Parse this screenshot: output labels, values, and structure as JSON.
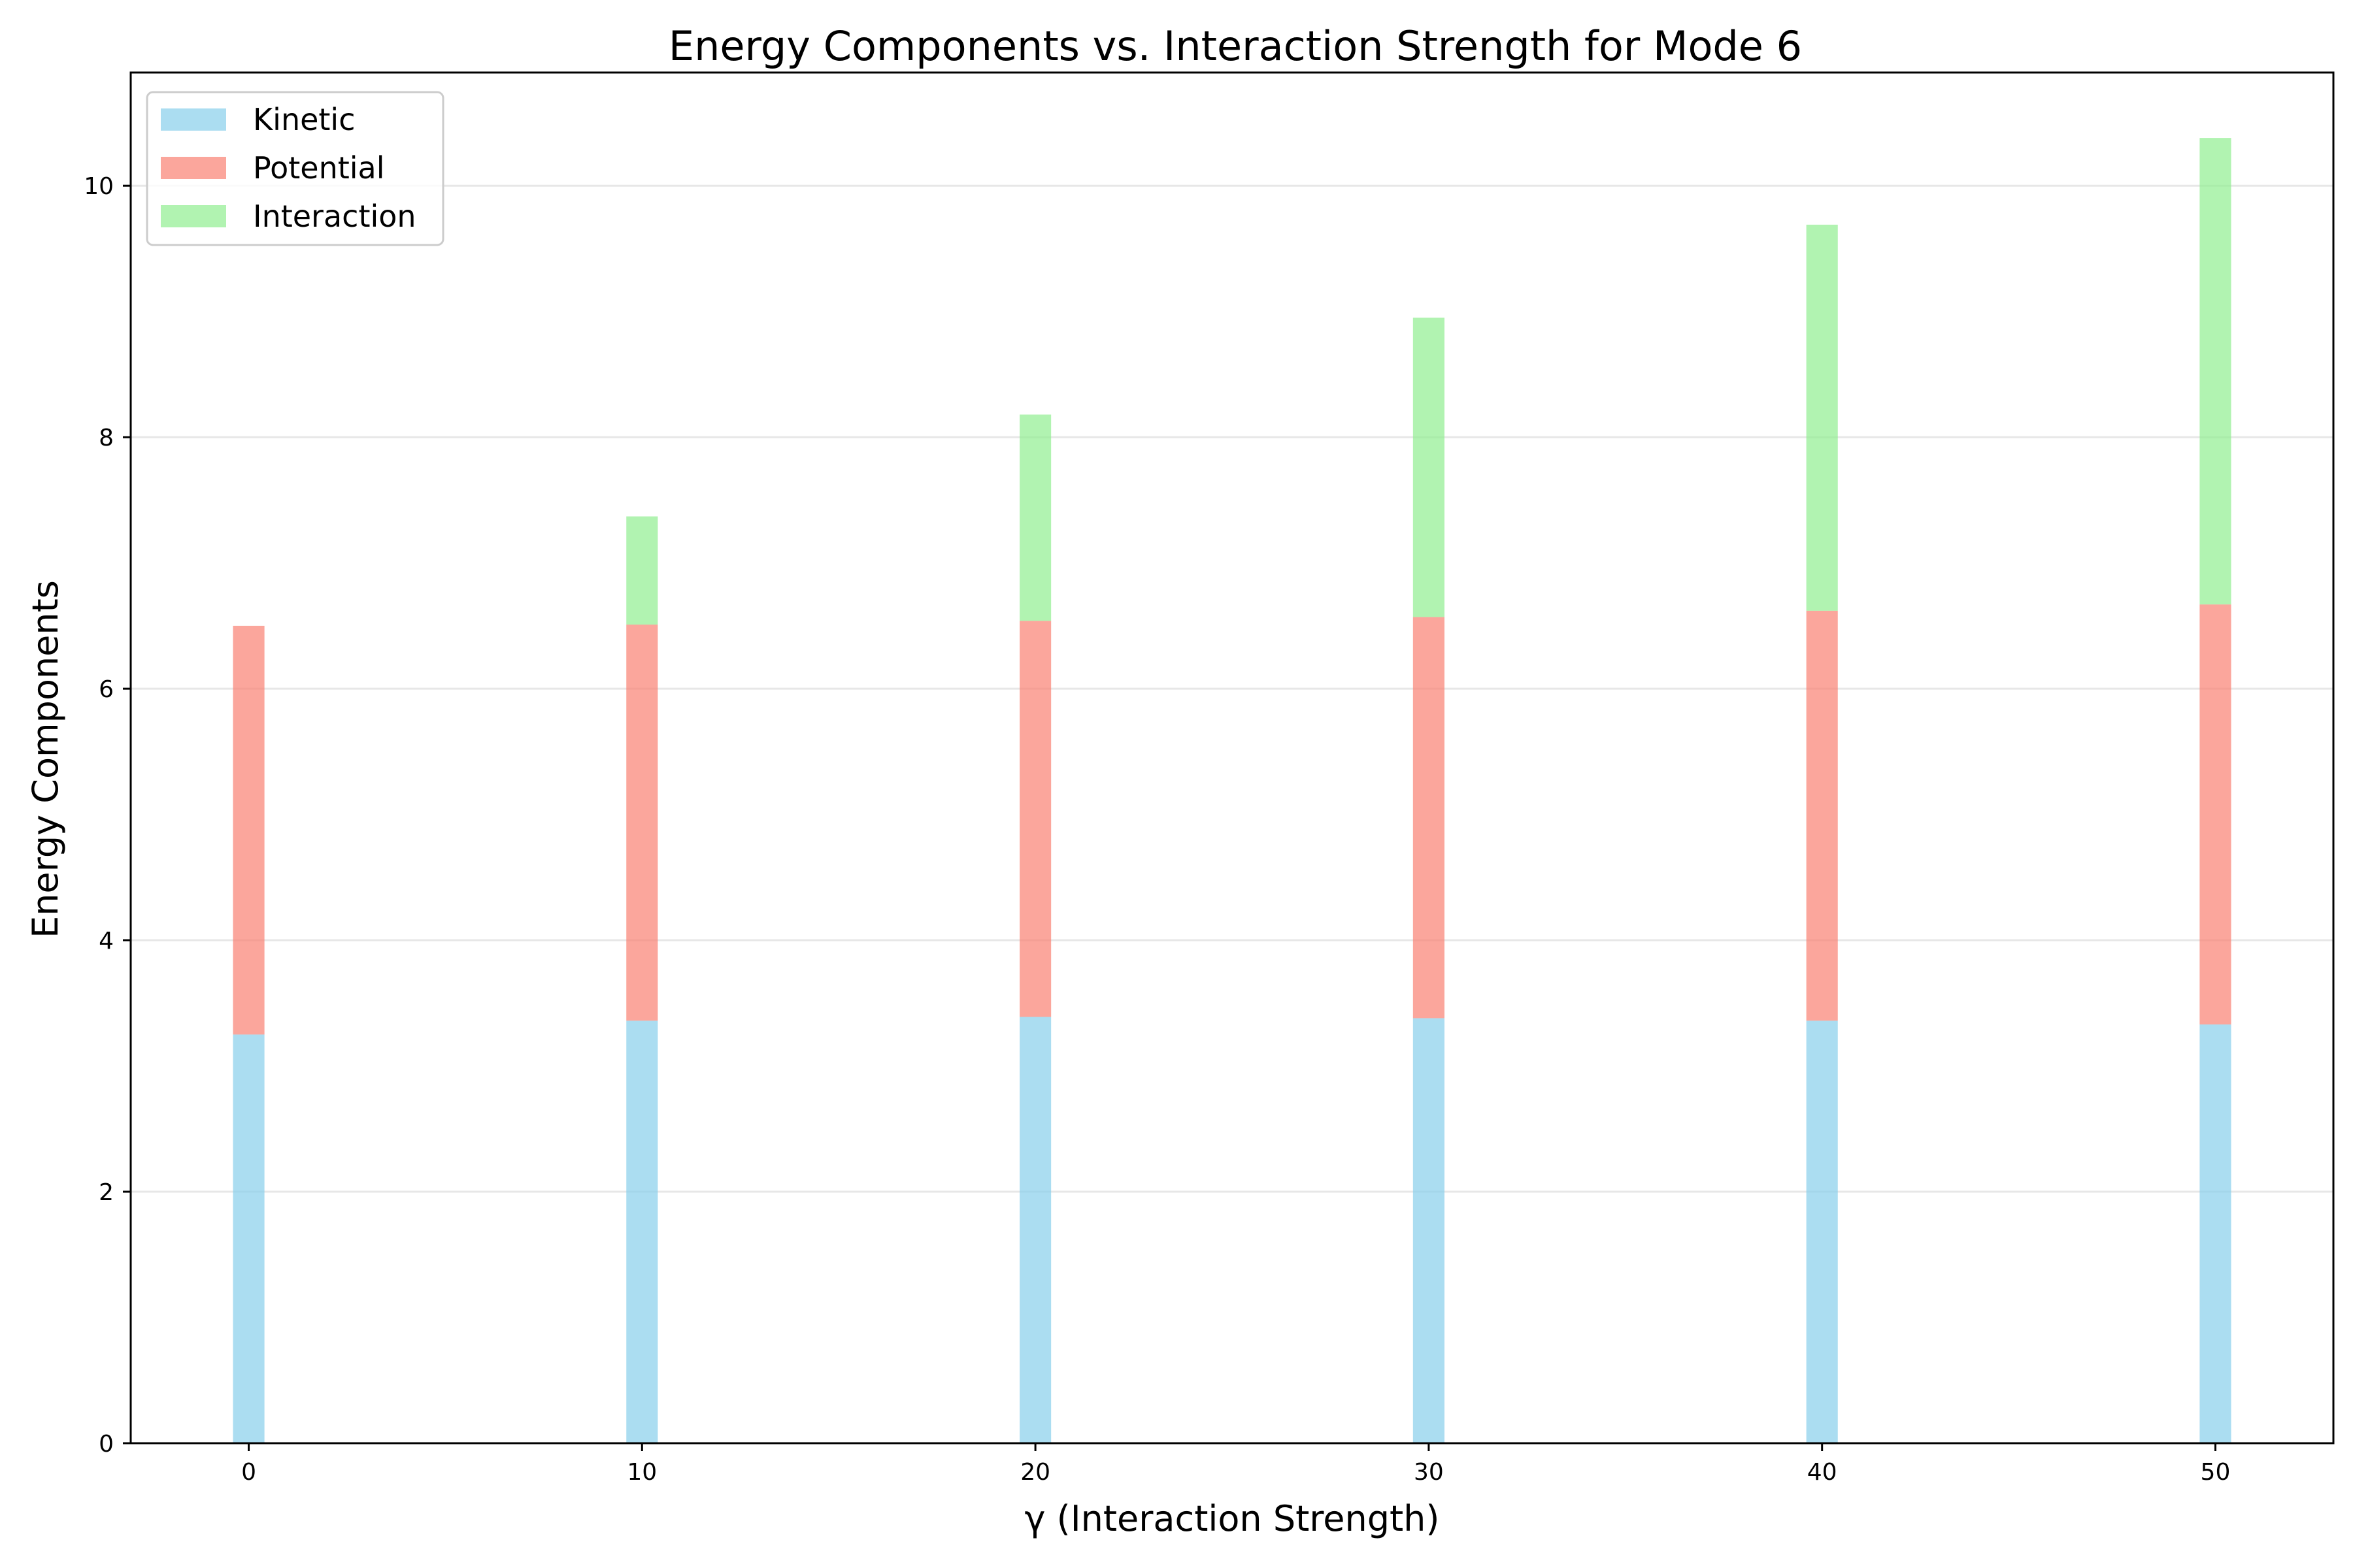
{
  "chart_data": {
    "type": "bar",
    "stacked": true,
    "title": "Energy Components vs. Interaction Strength for Mode 6",
    "xlabel": "γ (Interaction Strength)",
    "ylabel": "Energy Components",
    "x": [
      0,
      10,
      20,
      30,
      40,
      50
    ],
    "xticks": [
      0,
      10,
      20,
      30,
      40,
      50
    ],
    "yticks": [
      0,
      2,
      4,
      6,
      8,
      10
    ],
    "xlim": [
      -3,
      53
    ],
    "ylim": [
      0,
      10.9
    ],
    "grid": "y-axis only",
    "legend_position": "upper left",
    "series": [
      {
        "name": "Kinetic",
        "color": "#87ceeb",
        "values": [
          3.25,
          3.36,
          3.39,
          3.38,
          3.36,
          3.33
        ]
      },
      {
        "name": "Potential",
        "color": "#fa8072",
        "values": [
          3.25,
          3.15,
          3.15,
          3.19,
          3.26,
          3.34
        ]
      },
      {
        "name": "Interaction",
        "color": "#90ee90",
        "values": [
          0.0,
          0.86,
          1.64,
          2.38,
          3.07,
          3.71
        ]
      }
    ]
  }
}
